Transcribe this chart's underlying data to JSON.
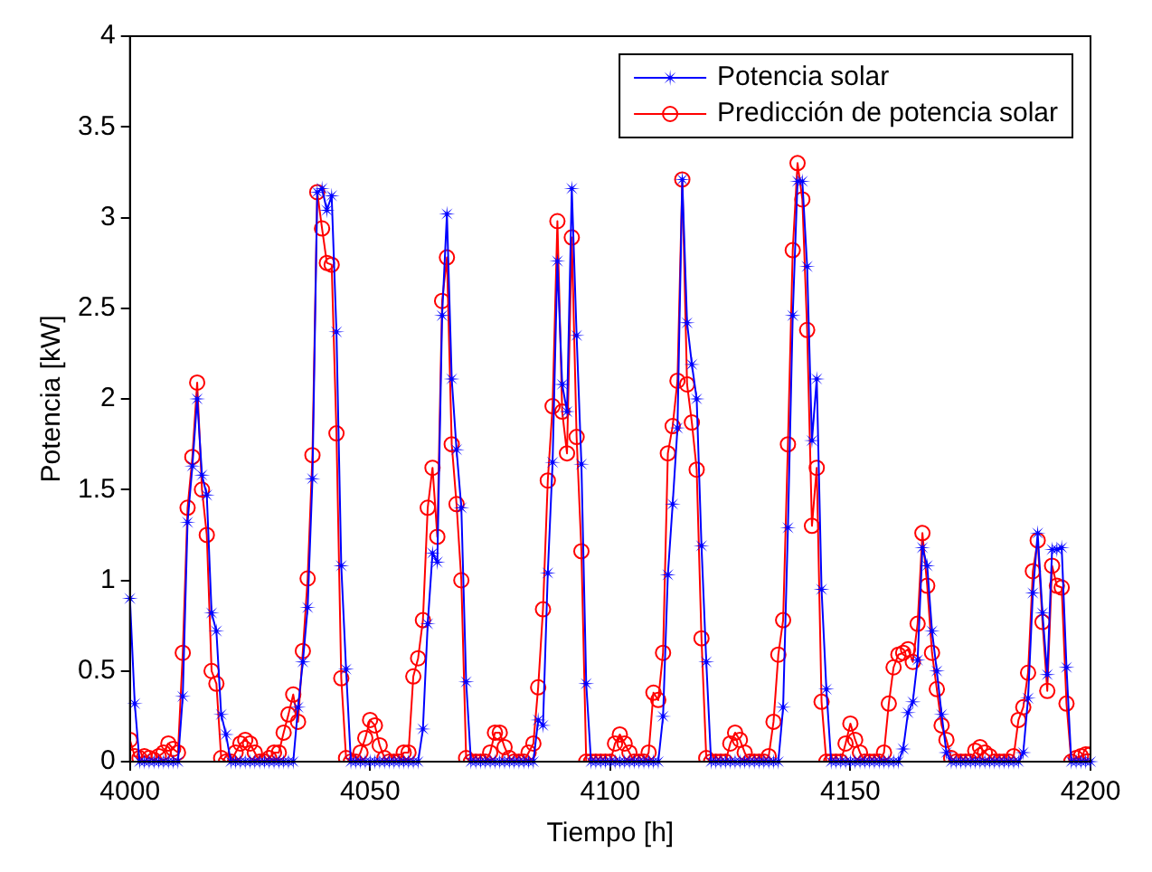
{
  "chart_data": {
    "type": "line",
    "xlabel": "Tiempo [h]",
    "ylabel": "Potencia [kW]",
    "x": [
      4000,
      4001,
      4002,
      4003,
      4004,
      4005,
      4006,
      4007,
      4008,
      4009,
      4010,
      4011,
      4012,
      4013,
      4014,
      4015,
      4016,
      4017,
      4018,
      4019,
      4020,
      4021,
      4022,
      4023,
      4024,
      4025,
      4026,
      4027,
      4028,
      4029,
      4030,
      4031,
      4032,
      4033,
      4034,
      4035,
      4036,
      4037,
      4038,
      4039,
      4040,
      4041,
      4042,
      4043,
      4044,
      4045,
      4046,
      4047,
      4048,
      4049,
      4050,
      4051,
      4052,
      4053,
      4054,
      4055,
      4056,
      4057,
      4058,
      4059,
      4060,
      4061,
      4062,
      4063,
      4064,
      4065,
      4066,
      4067,
      4068,
      4069,
      4070,
      4071,
      4072,
      4073,
      4074,
      4075,
      4076,
      4077,
      4078,
      4079,
      4080,
      4081,
      4082,
      4083,
      4084,
      4085,
      4086,
      4087,
      4088,
      4089,
      4090,
      4091,
      4092,
      4093,
      4094,
      4095,
      4096,
      4097,
      4098,
      4099,
      4100,
      4101,
      4102,
      4103,
      4104,
      4105,
      4106,
      4107,
      4108,
      4109,
      4110,
      4111,
      4112,
      4113,
      4114,
      4115,
      4116,
      4117,
      4118,
      4119,
      4120,
      4121,
      4122,
      4123,
      4124,
      4125,
      4126,
      4127,
      4128,
      4129,
      4130,
      4131,
      4132,
      4133,
      4134,
      4135,
      4136,
      4137,
      4138,
      4139,
      4140,
      4141,
      4142,
      4143,
      4144,
      4145,
      4146,
      4147,
      4148,
      4149,
      4150,
      4151,
      4152,
      4153,
      4154,
      4155,
      4156,
      4157,
      4158,
      4159,
      4160,
      4161,
      4162,
      4163,
      4164,
      4165,
      4166,
      4167,
      4168,
      4169,
      4170,
      4171,
      4172,
      4173,
      4174,
      4175,
      4176,
      4177,
      4178,
      4179,
      4180,
      4181,
      4182,
      4183,
      4184,
      4185,
      4186,
      4187,
      4188,
      4189,
      4190,
      4191,
      4192,
      4193,
      4194,
      4195,
      4196,
      4197,
      4198,
      4199,
      4200
    ],
    "series": [
      {
        "name": "Potencia solar",
        "color": "#0000ff",
        "marker": "star",
        "values": [
          0.9,
          0.32,
          0,
          0,
          0,
          0,
          0,
          0,
          0,
          0,
          0,
          0.36,
          1.32,
          1.63,
          2.0,
          1.58,
          1.47,
          0.82,
          0.72,
          0.26,
          0.15,
          0,
          0,
          0,
          0,
          0,
          0,
          0,
          0,
          0,
          0,
          0,
          0,
          0,
          0,
          0.3,
          0.55,
          0.85,
          1.56,
          3.14,
          3.16,
          3.04,
          3.12,
          2.37,
          1.08,
          0.51,
          0,
          0,
          0,
          0,
          0,
          0,
          0,
          0,
          0,
          0,
          0,
          0,
          0,
          0,
          0,
          0.18,
          0.76,
          1.15,
          1.1,
          2.46,
          3.02,
          2.11,
          1.72,
          1.4,
          0.44,
          0,
          0,
          0,
          0,
          0,
          0,
          0,
          0,
          0,
          0,
          0,
          0,
          0,
          0,
          0.23,
          0.2,
          1.04,
          1.65,
          2.76,
          2.08,
          1.93,
          3.16,
          2.35,
          1.64,
          0.43,
          0,
          0,
          0,
          0,
          0,
          0,
          0,
          0,
          0,
          0,
          0,
          0,
          0,
          0,
          0,
          0.25,
          1.03,
          1.42,
          1.84,
          3.21,
          2.42,
          2.19,
          2.0,
          1.19,
          0.55,
          0,
          0,
          0,
          0,
          0,
          0,
          0,
          0,
          0,
          0,
          0,
          0,
          0,
          0,
          0,
          0.3,
          1.29,
          2.46,
          3.2,
          3.2,
          2.73,
          1.77,
          2.11,
          0.95,
          0.4,
          0,
          0,
          0,
          0,
          0,
          0,
          0,
          0,
          0,
          0,
          0,
          0,
          0,
          0,
          0,
          0.07,
          0.27,
          0.33,
          0.56,
          1.18,
          1.08,
          0.72,
          0.5,
          0.26,
          0.05,
          0,
          0,
          0,
          0,
          0,
          0,
          0,
          0,
          0,
          0,
          0,
          0,
          0,
          0,
          0,
          0.05,
          0.35,
          0.93,
          1.26,
          0.82,
          0.48,
          1.17,
          1.17,
          1.18,
          0.52,
          0,
          0,
          0,
          0,
          0
        ]
      },
      {
        "name": "Predicción de potencia solar",
        "color": "#ff0000",
        "marker": "circle",
        "values": [
          0.12,
          0.03,
          0.02,
          0.03,
          0.02,
          0.01,
          0.03,
          0.05,
          0.1,
          0.07,
          0.05,
          0.6,
          1.4,
          1.68,
          2.09,
          1.5,
          1.25,
          0.5,
          0.43,
          0.02,
          0,
          0,
          0.05,
          0.1,
          0.12,
          0.1,
          0.05,
          0,
          0,
          0.02,
          0.05,
          0.05,
          0.16,
          0.26,
          0.37,
          0.22,
          0.61,
          1.01,
          1.69,
          3.14,
          2.94,
          2.75,
          2.74,
          1.81,
          0.46,
          0.02,
          0,
          0,
          0.05,
          0.13,
          0.23,
          0.2,
          0.09,
          0.02,
          0,
          0,
          0,
          0.05,
          0.05,
          0.47,
          0.57,
          0.78,
          1.4,
          1.62,
          1.24,
          2.54,
          2.78,
          1.75,
          1.42,
          1.0,
          0.02,
          0,
          0,
          0,
          0,
          0.05,
          0.16,
          0.16,
          0.08,
          0.02,
          0,
          0,
          0,
          0.05,
          0.1,
          0.41,
          0.84,
          1.55,
          1.96,
          2.98,
          1.93,
          1.7,
          2.89,
          1.79,
          1.16,
          0,
          0,
          0,
          0,
          0,
          0,
          0.1,
          0.15,
          0.1,
          0.05,
          0,
          0,
          0,
          0.05,
          0.38,
          0.34,
          0.6,
          1.7,
          1.85,
          2.1,
          3.21,
          2.08,
          1.87,
          1.61,
          0.68,
          0.02,
          0,
          0,
          0,
          0,
          0.1,
          0.16,
          0.12,
          0.05,
          0,
          0,
          0,
          0,
          0.03,
          0.22,
          0.59,
          0.78,
          1.75,
          2.82,
          3.3,
          3.1,
          2.38,
          1.3,
          1.62,
          0.33,
          0,
          0,
          0,
          0,
          0.1,
          0.21,
          0.12,
          0.05,
          0,
          0,
          0,
          0,
          0.05,
          0.32,
          0.52,
          0.59,
          0.6,
          0.62,
          0.55,
          0.76,
          1.26,
          0.97,
          0.6,
          0.4,
          0.2,
          0.12,
          0.02,
          0,
          0,
          0,
          0,
          0.06,
          0.08,
          0.05,
          0.03,
          0,
          0,
          0,
          0,
          0.03,
          0.23,
          0.3,
          0.49,
          1.05,
          1.22,
          0.77,
          0.39,
          1.08,
          0.97,
          0.96,
          0.32,
          0,
          0.02,
          0.03,
          0.04,
          0.04
        ]
      }
    ],
    "xlim": [
      4000,
      4200
    ],
    "xticks": [
      4000,
      4050,
      4100,
      4150,
      4200
    ],
    "ylim": [
      0,
      4
    ],
    "yticks": [
      0,
      0.5,
      1,
      1.5,
      2,
      2.5,
      3,
      3.5,
      4
    ],
    "grid": false,
    "legend": "top right"
  }
}
